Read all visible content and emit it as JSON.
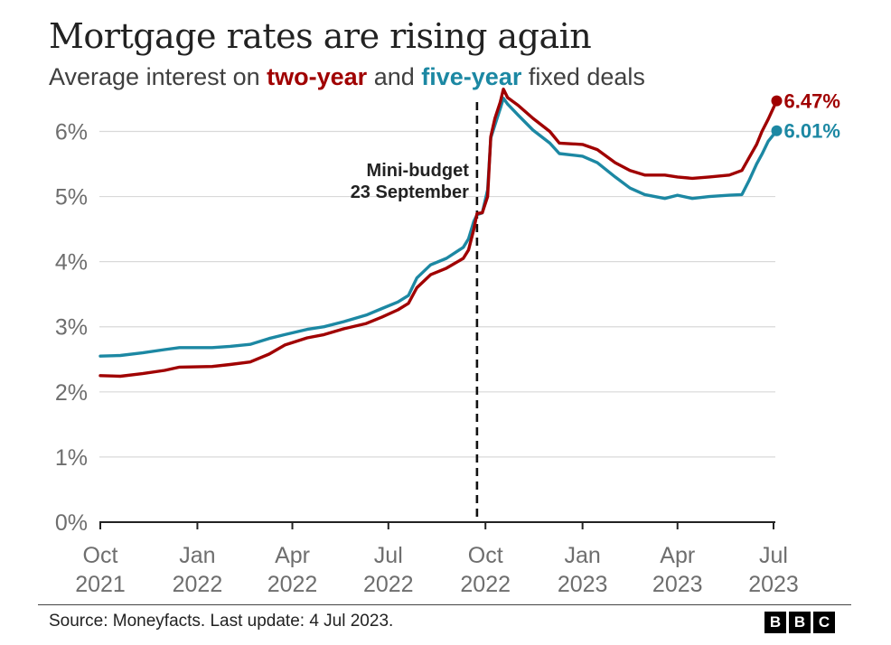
{
  "header": {
    "title": "Mortgage rates are rising again",
    "subtitle_pre": "Average interest on ",
    "subtitle_series1": "two-year",
    "subtitle_mid": " and ",
    "subtitle_series2": "five-year",
    "subtitle_post": " fixed deals"
  },
  "footer": {
    "source": "Source: Moneyfacts. Last update: 4 Jul 2023.",
    "logo_letters": [
      "B",
      "B",
      "C"
    ]
  },
  "colors": {
    "two_year": "#a00000",
    "five_year": "#1c88a3",
    "grid": "#d9d9d9",
    "axis": "#222222",
    "tick_label": "#6e6e6e"
  },
  "chart_data": {
    "type": "line",
    "x_axis": {
      "ticks": [
        {
          "date": "2021-10-01",
          "label": [
            "Oct",
            "2021"
          ]
        },
        {
          "date": "2022-01-01",
          "label": [
            "Jan",
            "2022"
          ]
        },
        {
          "date": "2022-04-01",
          "label": [
            "Apr",
            "2022"
          ]
        },
        {
          "date": "2022-07-01",
          "label": [
            "Jul",
            "2022"
          ]
        },
        {
          "date": "2022-10-01",
          "label": [
            "Oct",
            "2022"
          ]
        },
        {
          "date": "2023-01-01",
          "label": [
            "Jan",
            "2023"
          ]
        },
        {
          "date": "2023-04-01",
          "label": [
            "Apr",
            "2023"
          ]
        },
        {
          "date": "2023-07-01",
          "label": [
            "Jul",
            "2023"
          ]
        }
      ]
    },
    "y_axis": {
      "min": 0,
      "max": 6.7,
      "ticks": [
        0,
        1,
        2,
        3,
        4,
        5,
        6
      ],
      "tick_labels": [
        "0%",
        "1%",
        "2%",
        "3%",
        "4%",
        "5%",
        "6%"
      ],
      "grid": true
    },
    "annotation": {
      "date": "2022-09-23",
      "label_lines": [
        "Mini-budget",
        "23 September"
      ],
      "style": "dashed-vertical"
    },
    "series": [
      {
        "key": "two_year",
        "name": "two-year",
        "end_label": "6.47%",
        "points": [
          [
            "2021-10-01",
            2.25
          ],
          [
            "2021-10-20",
            2.24
          ],
          [
            "2021-11-10",
            2.28
          ],
          [
            "2021-12-01",
            2.33
          ],
          [
            "2021-12-15",
            2.38
          ],
          [
            "2022-01-15",
            2.39
          ],
          [
            "2022-02-01",
            2.42
          ],
          [
            "2022-02-20",
            2.46
          ],
          [
            "2022-03-10",
            2.58
          ],
          [
            "2022-03-25",
            2.72
          ],
          [
            "2022-04-15",
            2.83
          ],
          [
            "2022-05-01",
            2.88
          ],
          [
            "2022-05-20",
            2.97
          ],
          [
            "2022-06-10",
            3.05
          ],
          [
            "2022-06-25",
            3.15
          ],
          [
            "2022-07-10",
            3.26
          ],
          [
            "2022-07-20",
            3.36
          ],
          [
            "2022-07-28",
            3.6
          ],
          [
            "2022-08-10",
            3.8
          ],
          [
            "2022-08-25",
            3.9
          ],
          [
            "2022-09-10",
            4.05
          ],
          [
            "2022-09-15",
            4.18
          ],
          [
            "2022-09-20",
            4.5
          ],
          [
            "2022-09-23",
            4.74
          ],
          [
            "2022-09-28",
            4.75
          ],
          [
            "2022-10-03",
            5.0
          ],
          [
            "2022-10-06",
            5.92
          ],
          [
            "2022-10-10",
            6.2
          ],
          [
            "2022-10-15",
            6.45
          ],
          [
            "2022-10-18",
            6.65
          ],
          [
            "2022-10-22",
            6.52
          ],
          [
            "2022-11-01",
            6.4
          ],
          [
            "2022-11-15",
            6.2
          ],
          [
            "2022-12-01",
            6.0
          ],
          [
            "2022-12-10",
            5.82
          ],
          [
            "2023-01-01",
            5.8
          ],
          [
            "2023-01-15",
            5.72
          ],
          [
            "2023-02-01",
            5.52
          ],
          [
            "2023-02-15",
            5.4
          ],
          [
            "2023-03-01",
            5.33
          ],
          [
            "2023-03-20",
            5.33
          ],
          [
            "2023-04-01",
            5.3
          ],
          [
            "2023-04-15",
            5.28
          ],
          [
            "2023-05-01",
            5.3
          ],
          [
            "2023-05-20",
            5.33
          ],
          [
            "2023-06-01",
            5.4
          ],
          [
            "2023-06-08",
            5.6
          ],
          [
            "2023-06-15",
            5.8
          ],
          [
            "2023-06-20",
            6.0
          ],
          [
            "2023-06-26",
            6.19
          ],
          [
            "2023-07-04",
            6.47
          ]
        ]
      },
      {
        "key": "five_year",
        "name": "five-year",
        "end_label": "6.01%",
        "points": [
          [
            "2021-10-01",
            2.55
          ],
          [
            "2021-10-20",
            2.56
          ],
          [
            "2021-11-10",
            2.6
          ],
          [
            "2021-12-01",
            2.65
          ],
          [
            "2021-12-15",
            2.68
          ],
          [
            "2022-01-15",
            2.68
          ],
          [
            "2022-02-01",
            2.7
          ],
          [
            "2022-02-20",
            2.73
          ],
          [
            "2022-03-10",
            2.82
          ],
          [
            "2022-03-25",
            2.88
          ],
          [
            "2022-04-15",
            2.96
          ],
          [
            "2022-05-01",
            3.0
          ],
          [
            "2022-05-20",
            3.08
          ],
          [
            "2022-06-10",
            3.18
          ],
          [
            "2022-06-25",
            3.28
          ],
          [
            "2022-07-10",
            3.38
          ],
          [
            "2022-07-20",
            3.48
          ],
          [
            "2022-07-28",
            3.75
          ],
          [
            "2022-08-10",
            3.95
          ],
          [
            "2022-08-25",
            4.05
          ],
          [
            "2022-09-10",
            4.22
          ],
          [
            "2022-09-15",
            4.35
          ],
          [
            "2022-09-20",
            4.62
          ],
          [
            "2022-09-23",
            4.72
          ],
          [
            "2022-09-28",
            4.75
          ],
          [
            "2022-10-03",
            5.1
          ],
          [
            "2022-10-06",
            5.9
          ],
          [
            "2022-10-10",
            6.1
          ],
          [
            "2022-10-15",
            6.35
          ],
          [
            "2022-10-18",
            6.51
          ],
          [
            "2022-10-22",
            6.42
          ],
          [
            "2022-11-01",
            6.25
          ],
          [
            "2022-11-15",
            6.02
          ],
          [
            "2022-12-01",
            5.82
          ],
          [
            "2022-12-10",
            5.66
          ],
          [
            "2023-01-01",
            5.62
          ],
          [
            "2023-01-15",
            5.52
          ],
          [
            "2023-02-01",
            5.3
          ],
          [
            "2023-02-15",
            5.13
          ],
          [
            "2023-03-01",
            5.03
          ],
          [
            "2023-03-20",
            4.97
          ],
          [
            "2023-04-01",
            5.02
          ],
          [
            "2023-04-15",
            4.97
          ],
          [
            "2023-05-01",
            5.0
          ],
          [
            "2023-05-20",
            5.02
          ],
          [
            "2023-06-01",
            5.03
          ],
          [
            "2023-06-08",
            5.25
          ],
          [
            "2023-06-15",
            5.5
          ],
          [
            "2023-06-20",
            5.65
          ],
          [
            "2023-06-26",
            5.85
          ],
          [
            "2023-07-04",
            6.01
          ]
        ]
      }
    ]
  }
}
